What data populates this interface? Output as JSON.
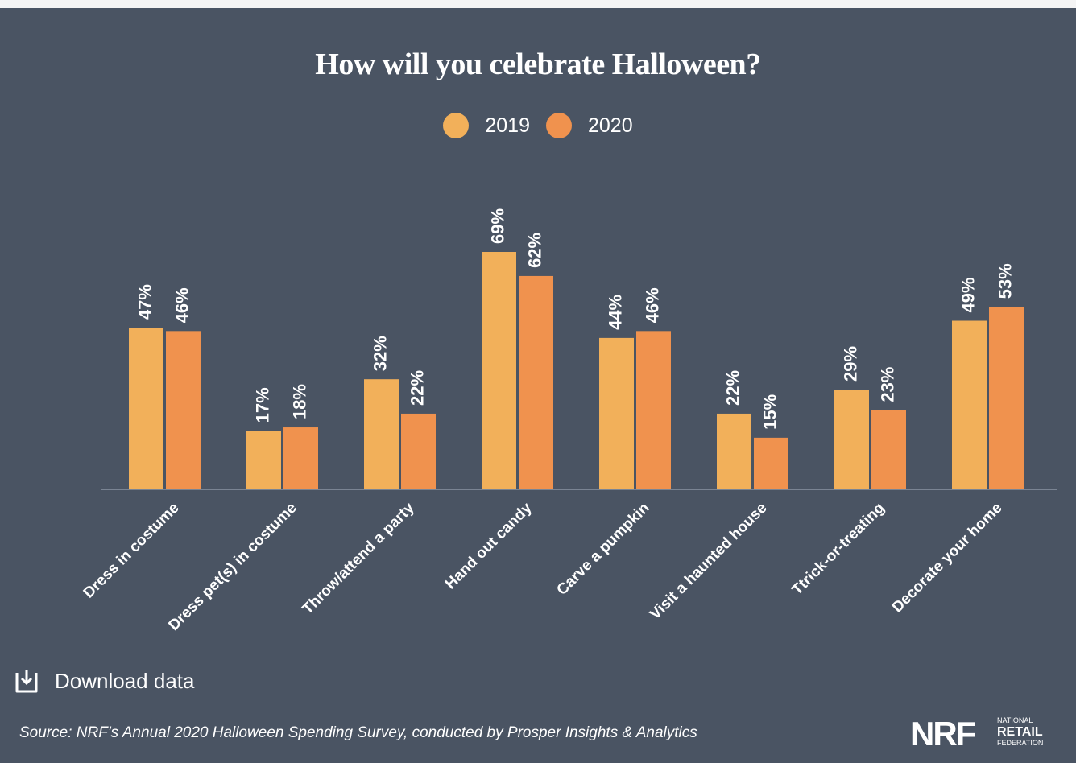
{
  "chart_data": {
    "type": "bar",
    "title": "How will you celebrate Halloween?",
    "categories": [
      "Dress in costume",
      "Dress pet(s) in costume",
      "Throw/attend a party",
      "Hand out candy",
      "Carve a pumpkin",
      "Visit a haunted house",
      "Ttrick-or-treating",
      "Decorate your home"
    ],
    "series": [
      {
        "name": "2019",
        "color": "#f2b05a",
        "values": [
          47,
          17,
          32,
          69,
          44,
          22,
          29,
          49
        ]
      },
      {
        "name": "2020",
        "color": "#f0924e",
        "values": [
          46,
          18,
          22,
          62,
          46,
          15,
          23,
          53
        ]
      }
    ],
    "value_suffix": "%",
    "ylim": [
      0,
      69
    ],
    "grid": false,
    "legend_position": "top-center",
    "xlabel": "",
    "ylabel": ""
  },
  "legend": {
    "items": [
      {
        "label": "2019",
        "color": "#f2b05a"
      },
      {
        "label": "2020",
        "color": "#f0924e"
      }
    ]
  },
  "download": {
    "label": "Download data",
    "icon": "download-icon"
  },
  "source": "Source: NRF’s Annual 2020 Halloween Spending Survey, conducted by Prosper Insights & Analytics",
  "logo": {
    "mark": "NRF",
    "line1": "NATIONAL",
    "line2": "RETAIL",
    "line3": "FEDERATION"
  },
  "colors": {
    "background": "#4a5463",
    "text": "#ffffff",
    "axis": "#8a94a3"
  }
}
